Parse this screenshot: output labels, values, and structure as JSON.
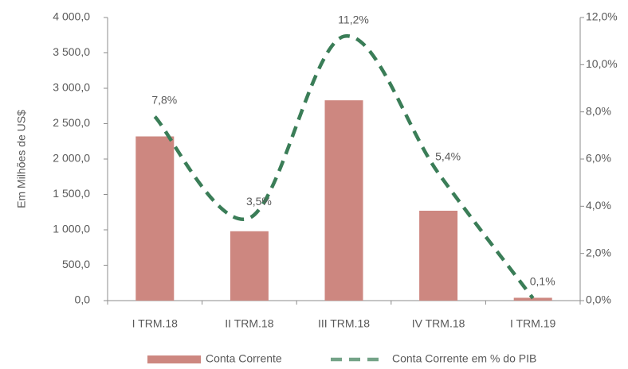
{
  "chart_data": {
    "type": "bar-line",
    "ylabel": "Em Milhões de US$",
    "categories": [
      "I TRM.18",
      "II TRM.18",
      "III TRM.18",
      "IV TRM.18",
      "I TRM.19"
    ],
    "series": [
      {
        "name": "Conta Corrente",
        "color": "#cd8780",
        "values": [
          2320,
          980,
          2830,
          1270,
          40
        ]
      },
      {
        "name": "Conta Corrente em % do PIB",
        "color": "#3a7d57",
        "axis": "y2",
        "values": [
          7.8,
          3.5,
          11.2,
          5.4,
          0.1
        ],
        "value_labels": [
          "7,8%",
          "3,5%",
          "11,2%",
          "5,4%",
          "0,1%"
        ]
      }
    ],
    "ylim": [
      0,
      4000
    ],
    "yticks": [
      {
        "value": 0,
        "label": "0,0"
      },
      {
        "value": 500,
        "label": "500,0"
      },
      {
        "value": 1000,
        "label": "1 000,0"
      },
      {
        "value": 1500,
        "label": "1 500,0"
      },
      {
        "value": 2000,
        "label": "2 000,0"
      },
      {
        "value": 2500,
        "label": "2 500,0"
      },
      {
        "value": 3000,
        "label": "3 000,0"
      },
      {
        "value": 3500,
        "label": "3 500,0"
      },
      {
        "value": 4000,
        "label": "4 000,0"
      }
    ],
    "y2lim": [
      0,
      12
    ],
    "y2ticks": [
      {
        "value": 0,
        "label": "0,0%"
      },
      {
        "value": 2,
        "label": "2,0%"
      },
      {
        "value": 4,
        "label": "4,0%"
      },
      {
        "value": 6,
        "label": "6,0%"
      },
      {
        "value": 8,
        "label": "8,0%"
      },
      {
        "value": 10,
        "label": "10,0%"
      },
      {
        "value": 12,
        "label": "12,0%"
      }
    ]
  }
}
